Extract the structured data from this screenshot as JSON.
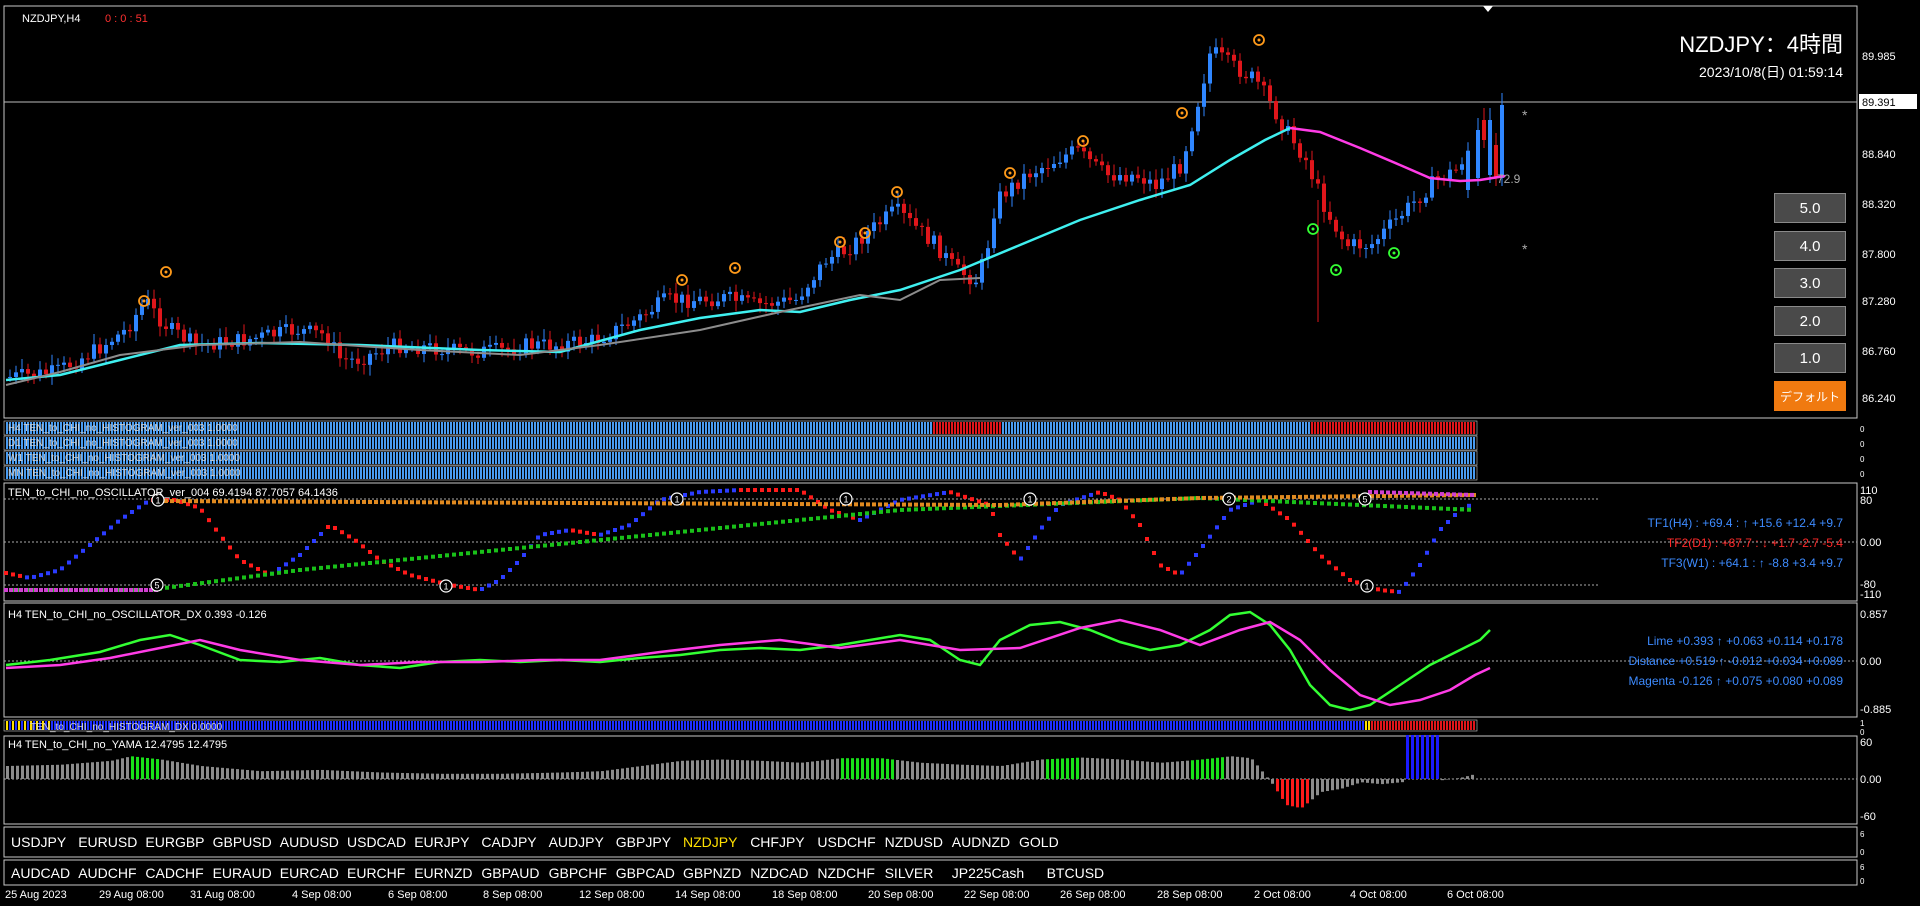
{
  "window": {
    "title": "NZDJPY,H4",
    "countdown": "0 : 0 : 51"
  },
  "header": {
    "title": "NZDJPY：4時間",
    "datetime": "2023/10/8(日) 01:59:14"
  },
  "price_axis": {
    "ticks": [
      "89.985",
      "88.840",
      "88.320",
      "87.800",
      "87.280",
      "86.760",
      "86.240"
    ],
    "current_price": "89.391"
  },
  "main_labels": {
    "value_label": "72.9",
    "star": "*"
  },
  "scale_buttons": [
    "5.0",
    "4.0",
    "3.0",
    "2.0",
    "1.0"
  ],
  "default_button": "デフォルト",
  "histograms": [
    {
      "label": "H4 TEN_to_CHI_no_HISTOGRAM_ver_003 1.0000"
    },
    {
      "label": "D1 TEN_to_CHI_no_HISTOGRAM_ver_003 1.0000"
    },
    {
      "label": "W1 TEN_to_CHI_no_HISTOGRAM_ver_003 1.0000"
    },
    {
      "label": "MN TEN_to_CHI_no_HISTOGRAM_ver_003 1.0000"
    }
  ],
  "hist_axis": "0",
  "oscillator": {
    "label": "TEN_to_CHI_no_OSCILLATOR_ver_004 69.4194 87.7057 64.1436",
    "axis": [
      "110",
      "80",
      "0.00",
      "-80",
      "-110"
    ],
    "lines": [
      {
        "text": "TF1(H4) : +69.4 : ↑ +15.6 +12.4 +9.7",
        "color": "#3d8bff"
      },
      {
        "text": "TF2(D1) : +87.7 : ↓ +1.7 -2.7 -5.4",
        "color": "#ff2a2a"
      },
      {
        "text": "TF3(W1) : +64.1 : ↑ -8.8 +3.4 +9.7",
        "color": "#3d8bff"
      }
    ],
    "markers": [
      "1",
      "5",
      "2"
    ]
  },
  "dx": {
    "label": "H4 TEN_to_CHI_no_OSCILLATOR_DX 0.393 -0.126",
    "axis": [
      "0.857",
      "0.00",
      "-0.885"
    ],
    "lines": [
      {
        "text": "Lime +0.393 ↑ +0.063 +0.114 +0.178"
      },
      {
        "text": "Distance +0.519 ↑ -0.012 +0.034 +0.089"
      },
      {
        "text": "Magenta -0.126 ↑ +0.075 +0.080 +0.089"
      }
    ]
  },
  "histogram_dx": {
    "label": "TEN_to_CHI_no_HISTOGRAM_DX 0.0000",
    "axis": [
      "1",
      "0"
    ]
  },
  "yama": {
    "label": "H4 TEN_to_CHI_no_YAMA 12.4795 12.4795",
    "axis": [
      "60",
      "0.00",
      "-60"
    ]
  },
  "symbols_row1": [
    "USDJPY",
    "EURUSD",
    "EURGBP",
    "GBPUSD",
    "AUDUSD",
    "USDCAD",
    "EURJPY",
    "CADJPY",
    "AUDJPY",
    "GBPJPY",
    "NZDJPY",
    "CHFJPY",
    "USDCHF",
    "NZDUSD",
    "AUDNZD",
    "GOLD"
  ],
  "symbols_row2": [
    "AUDCAD",
    "AUDCHF",
    "CADCHF",
    "EURAUD",
    "EURCAD",
    "EURCHF",
    "EURNZD",
    "GBPAUD",
    "GBPCHF",
    "GBPCAD",
    "GBPNZD",
    "NZDCAD",
    "NZDCHF",
    "SILVER",
    "JP225Cash",
    "BTCUSD"
  ],
  "active_symbol": "NZDJPY",
  "symbol_axis": [
    "6",
    "0"
  ],
  "time_axis": [
    "25 Aug 2023",
    "29 Aug 08:00",
    "31 Aug 08:00",
    "4 Sep 08:00",
    "6 Sep 08:00",
    "8 Sep 08:00",
    "12 Sep 08:00",
    "14 Sep 08:00",
    "18 Sep 08:00",
    "20 Sep 08:00",
    "22 Sep 08:00",
    "26 Sep 08:00",
    "28 Sep 08:00",
    "2 Oct 08:00",
    "4 Oct 08:00",
    "6 Oct 08:00"
  ],
  "colors": {
    "bull": "#2f86ff",
    "bear": "#e0161b",
    "ma_cyan": "#3ff0f0",
    "ma_magenta": "#ff3ce6",
    "ma_gray": "#8c8c8c",
    "lime": "#33ff33",
    "orange": "#ff9a1a",
    "active_symbol": "#ffe000"
  }
}
